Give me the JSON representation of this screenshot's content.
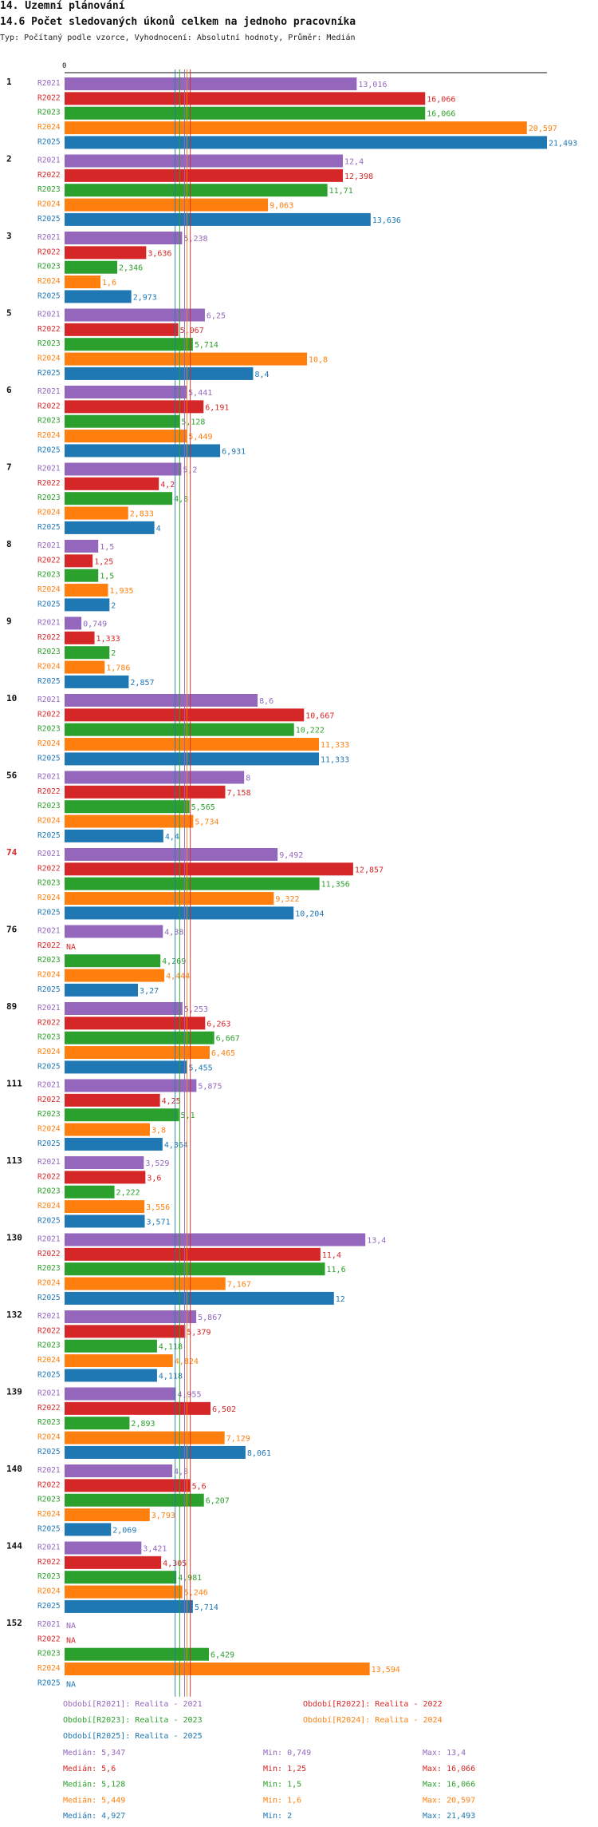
{
  "header": {
    "title": "14. Územní plánování",
    "subtitle": "14.6 Počet sledovaných úkonů celkem na jednoho pracovníka",
    "typeline": "Typ: Počítaný podle vzorce, Vyhodnocení: Absolutní hodnoty, Průměr: Medián"
  },
  "chart_data": {
    "type": "bar",
    "orientation": "horizontal",
    "title": "14.6 Počet sledovaných úkonů celkem na jednoho pracovníka",
    "axis_zero_label": "0",
    "xlim": [
      0,
      21.493
    ],
    "series": [
      {
        "name": "R2021",
        "color": "#9467bd"
      },
      {
        "name": "R2022",
        "color": "#d62728"
      },
      {
        "name": "R2023",
        "color": "#2ca02c"
      },
      {
        "name": "R2024",
        "color": "#ff7f0e"
      },
      {
        "name": "R2025",
        "color": "#1f77b4"
      }
    ],
    "groups": [
      {
        "id": "1",
        "highlight": false,
        "values": [
          13.016,
          16.066,
          16.066,
          20.597,
          21.493
        ],
        "labels": [
          "13,016",
          "16,066",
          "16,066",
          "20,597",
          "21,493"
        ]
      },
      {
        "id": "2",
        "highlight": false,
        "values": [
          12.4,
          12.398,
          11.71,
          9.063,
          13.636
        ],
        "labels": [
          "12,4",
          "12,398",
          "11,71",
          "9,063",
          "13,636"
        ]
      },
      {
        "id": "3",
        "highlight": false,
        "values": [
          5.238,
          3.636,
          2.346,
          1.6,
          2.973
        ],
        "labels": [
          "5,238",
          "3,636",
          "2,346",
          "1,6",
          "2,973"
        ]
      },
      {
        "id": "5",
        "highlight": false,
        "values": [
          6.25,
          5.067,
          5.714,
          10.8,
          8.4
        ],
        "labels": [
          "6,25",
          "5,067",
          "5,714",
          "10,8",
          "8,4"
        ]
      },
      {
        "id": "6",
        "highlight": false,
        "values": [
          5.441,
          6.191,
          5.128,
          5.449,
          6.931
        ],
        "labels": [
          "5,441",
          "6,191",
          "5,128",
          "5,449",
          "6,931"
        ]
      },
      {
        "id": "7",
        "highlight": false,
        "values": [
          5.2,
          4.2,
          4.8,
          2.833,
          4
        ],
        "labels": [
          "5,2",
          "4,2",
          "4,8",
          "2,833",
          "4"
        ]
      },
      {
        "id": "8",
        "highlight": false,
        "values": [
          1.5,
          1.25,
          1.5,
          1.935,
          2
        ],
        "labels": [
          "1,5",
          "1,25",
          "1,5",
          "1,935",
          "2"
        ]
      },
      {
        "id": "9",
        "highlight": false,
        "values": [
          0.749,
          1.333,
          2,
          1.786,
          2.857
        ],
        "labels": [
          "0,749",
          "1,333",
          "2",
          "1,786",
          "2,857"
        ]
      },
      {
        "id": "10",
        "highlight": false,
        "values": [
          8.6,
          10.667,
          10.222,
          11.333,
          11.333
        ],
        "labels": [
          "8,6",
          "10,667",
          "10,222",
          "11,333",
          "11,333"
        ]
      },
      {
        "id": "56",
        "highlight": false,
        "values": [
          8,
          7.158,
          5.565,
          5.734,
          4.4
        ],
        "labels": [
          "8",
          "7,158",
          "5,565",
          "5,734",
          "4,4"
        ]
      },
      {
        "id": "74",
        "highlight": true,
        "values": [
          9.492,
          12.857,
          11.356,
          9.322,
          10.204
        ],
        "labels": [
          "9,492",
          "12,857",
          "11,356",
          "9,322",
          "10,204"
        ]
      },
      {
        "id": "76",
        "highlight": false,
        "values": [
          4.38,
          null,
          4.269,
          4.444,
          3.27
        ],
        "labels": [
          "4,38",
          "NA",
          "4,269",
          "4,444",
          "3,27"
        ]
      },
      {
        "id": "89",
        "highlight": false,
        "values": [
          5.253,
          6.263,
          6.667,
          6.465,
          5.455
        ],
        "labels": [
          "5,253",
          "6,263",
          "6,667",
          "6,465",
          "5,455"
        ]
      },
      {
        "id": "111",
        "highlight": false,
        "values": [
          5.875,
          4.25,
          5.1,
          3.8,
          4.364
        ],
        "labels": [
          "5,875",
          "4,25",
          "5,1",
          "3,8",
          "4,364"
        ]
      },
      {
        "id": "113",
        "highlight": false,
        "values": [
          3.529,
          3.6,
          2.222,
          3.556,
          3.571
        ],
        "labels": [
          "3,529",
          "3,6",
          "2,222",
          "3,556",
          "3,571"
        ]
      },
      {
        "id": "130",
        "highlight": false,
        "values": [
          13.4,
          11.4,
          11.6,
          7.167,
          12
        ],
        "labels": [
          "13,4",
          "11,4",
          "11,6",
          "7,167",
          "12"
        ]
      },
      {
        "id": "132",
        "highlight": false,
        "values": [
          5.867,
          5.379,
          4.118,
          4.824,
          4.118
        ],
        "labels": [
          "5,867",
          "5,379",
          "4,118",
          "4,824",
          "4,118"
        ]
      },
      {
        "id": "139",
        "highlight": false,
        "values": [
          4.955,
          6.502,
          2.893,
          7.129,
          8.061
        ],
        "labels": [
          "4,955",
          "6,502",
          "2,893",
          "7,129",
          "8,061"
        ]
      },
      {
        "id": "140",
        "highlight": false,
        "values": [
          4.8,
          5.6,
          6.207,
          3.793,
          2.069
        ],
        "labels": [
          "4,8",
          "5,6",
          "6,207",
          "3,793",
          "2,069"
        ]
      },
      {
        "id": "144",
        "highlight": false,
        "values": [
          3.421,
          4.305,
          4.981,
          5.246,
          5.714
        ],
        "labels": [
          "3,421",
          "4,305",
          "4,981",
          "5,246",
          "5,714"
        ]
      },
      {
        "id": "152",
        "highlight": false,
        "values": [
          null,
          null,
          6.429,
          13.594,
          null
        ],
        "labels": [
          "NA",
          "NA",
          "6,429",
          "13,594",
          "NA"
        ]
      }
    ],
    "medians": [
      5.347,
      5.6,
      5.128,
      5.449,
      4.927
    ],
    "legend": [
      "Období[R2021]: Realita - 2021",
      "Období[R2022]: Realita - 2022",
      "Období[R2023]: Realita - 2023",
      "Období[R2024]: Realita - 2024",
      "Období[R2025]: Realita - 2025"
    ],
    "stats": [
      {
        "median": "Medián: 5,347",
        "min": "Min: 0,749",
        "max": "Max: 13,4"
      },
      {
        "median": "Medián: 5,6",
        "min": "Min: 1,25",
        "max": "Max: 16,066"
      },
      {
        "median": "Medián: 5,128",
        "min": "Min: 1,5",
        "max": "Max: 16,066"
      },
      {
        "median": "Medián: 5,449",
        "min": "Min: 1,6",
        "max": "Max: 20,597"
      },
      {
        "median": "Medián: 4,927",
        "min": "Min: 2",
        "max": "Max: 21,493"
      }
    ]
  }
}
